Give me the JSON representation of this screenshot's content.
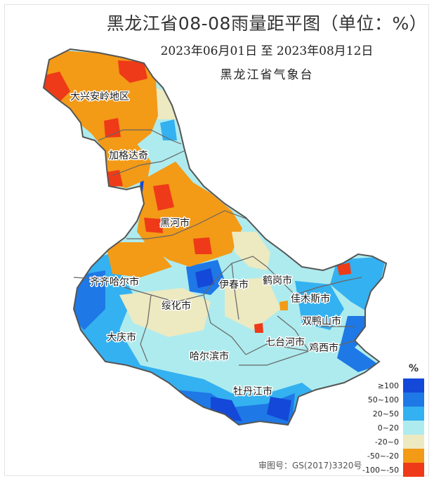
{
  "title": "黑龙江省08-08雨量距平图（单位：%）",
  "subtitle": "2023年06月01日  至  2023年08月12日",
  "organization": "黑龙江省气象台",
  "legend": {
    "unit": "%",
    "items": [
      {
        "label": "≥100",
        "color": "#1448d8"
      },
      {
        "label": "50~100",
        "color": "#1e78e6"
      },
      {
        "label": "20~50",
        "color": "#34b1f0"
      },
      {
        "label": "0~20",
        "color": "#aeebee"
      },
      {
        "label": "-20~0",
        "color": "#ede9c0"
      },
      {
        "label": "-50~-20",
        "color": "#f39a17"
      },
      {
        "label": "-100~-50",
        "color": "#ee3a18"
      }
    ]
  },
  "footer": "审图号：GS(2017)3320号",
  "cities": [
    {
      "name": "大兴安岭地区"
    },
    {
      "name": "加格达奇"
    },
    {
      "name": "黑河市"
    },
    {
      "name": "齐齐哈尔市"
    },
    {
      "name": "伊春市"
    },
    {
      "name": "鹤岗市"
    },
    {
      "name": "佳木斯市"
    },
    {
      "name": "绥化市"
    },
    {
      "name": "双鸭山市"
    },
    {
      "name": "大庆市"
    },
    {
      "name": "七台河市"
    },
    {
      "name": "鸡西市"
    },
    {
      "name": "哈尔滨市"
    },
    {
      "name": "牡丹江市"
    }
  ]
}
